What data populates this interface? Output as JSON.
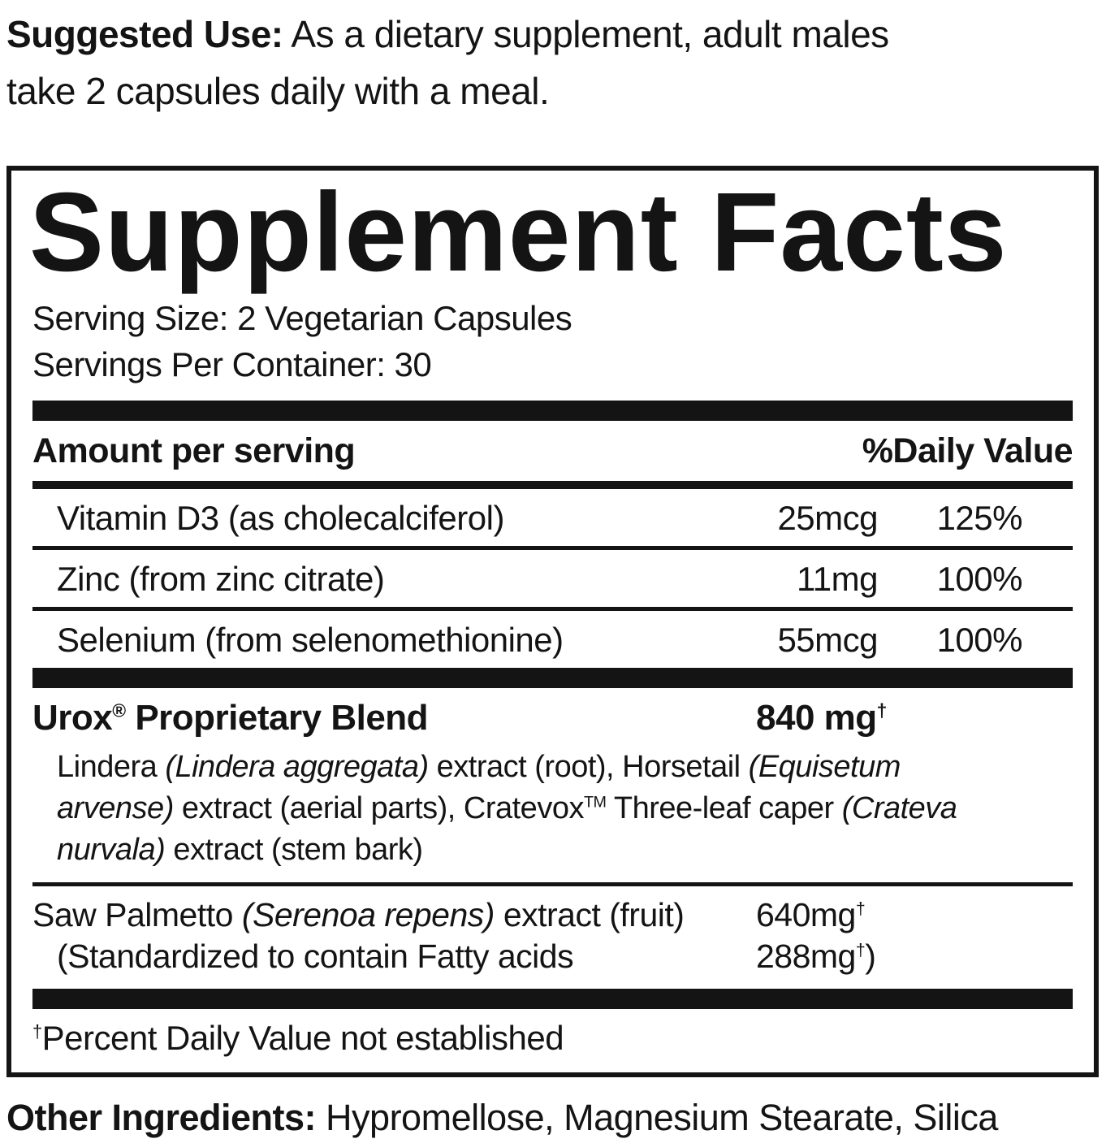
{
  "colors": {
    "ink": "#141414",
    "paper": "#ffffff"
  },
  "suggested_use": {
    "label": "Suggested Use:",
    "text": " As a dietary supplement, adult males take 2 capsules daily with a meal."
  },
  "panel": {
    "title": "Supplement Facts",
    "serving_size": "Serving Size: 2 Vegetarian Capsules",
    "servings_per_container": "Servings Per Container: 30",
    "header": {
      "amount_label": "Amount per serving",
      "daily_value_label": "%Daily Value"
    },
    "nutrients": [
      {
        "name": "Vitamin D3 (as cholecalciferol)",
        "amount": "25mcg",
        "daily_value": "125%"
      },
      {
        "name": "Zinc (from zinc citrate)",
        "amount": "11mg",
        "daily_value": "100%"
      },
      {
        "name": "Selenium (from selenomethionine)",
        "amount": "55mcg",
        "daily_value": "100%"
      }
    ],
    "blend": {
      "name": "Urox",
      "registered_mark": "®",
      "name_rest": " Proprietary Blend",
      "amount": "840 mg",
      "amount_dagger": "†",
      "description_lines": [
        {
          "segments": [
            {
              "text": "Lindera ",
              "style": "regular"
            },
            {
              "text": "(Lindera aggregata)",
              "style": "italic"
            },
            {
              "text": " extract (root), Horsetail ",
              "style": "regular"
            },
            {
              "text": "(Equisetum",
              "style": "italic"
            }
          ]
        },
        {
          "segments": [
            {
              "text": "arvense)",
              "style": "italic"
            },
            {
              "text": " extract (aerial parts), Cratevox",
              "style": "regular"
            },
            {
              "text": "TM",
              "style": "sup"
            },
            {
              "text": " Three-leaf caper ",
              "style": "regular"
            },
            {
              "text": "(Crateva",
              "style": "italic"
            }
          ]
        },
        {
          "segments": [
            {
              "text": "nurvala)",
              "style": "italic"
            },
            {
              "text": " extract (stem bark)",
              "style": "regular"
            }
          ]
        }
      ]
    },
    "saw_palmetto": {
      "name_segments": [
        {
          "text": "Saw Palmetto ",
          "style": "regular"
        },
        {
          "text": "(Serenoa repens)",
          "style": "italic"
        },
        {
          "text": " extract (fruit)",
          "style": "regular"
        }
      ],
      "amount": "640mg",
      "amount_dagger": "†",
      "standardized_text": "(Standardized to contain Fatty acids",
      "standardized_amount": "288mg",
      "standardized_dagger": "†",
      "standardized_close": ")"
    },
    "footnote": {
      "dagger": "†",
      "text": "Percent Daily Value not established"
    }
  },
  "other_ingredients": {
    "label": "Other Ingredients:",
    "text": " Hypromellose, Magnesium Stearate, Silica"
  }
}
